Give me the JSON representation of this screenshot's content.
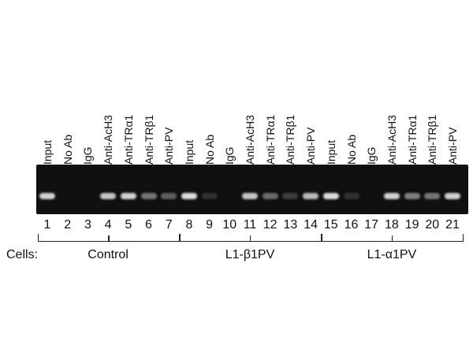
{
  "lane_labels": [
    "Input",
    "No Ab",
    "IgG",
    "Anti-AcH3",
    "Anti-TRα1",
    "Anti-TRβ1",
    "Anti-PV",
    "Input",
    "No Ab",
    "IgG",
    "Anti-AcH3",
    "Anti-TRα1",
    "Anti-TRβ1",
    "Anti-PV",
    "Input",
    "No Ab",
    "IgG",
    "Anti-AcH3",
    "Anti-TRα1",
    "Anti-TRβ1",
    "Anti-PV"
  ],
  "lane_numbers": [
    "1",
    "2",
    "3",
    "4",
    "5",
    "6",
    "7",
    "8",
    "9",
    "10",
    "11",
    "12",
    "13",
    "14",
    "15",
    "16",
    "17",
    "18",
    "19",
    "20",
    "21"
  ],
  "band_intensity": [
    0.85,
    0.0,
    0.0,
    0.8,
    0.85,
    0.45,
    0.35,
    0.9,
    0.15,
    0.0,
    0.8,
    0.4,
    0.2,
    0.75,
    0.9,
    0.15,
    0.0,
    0.85,
    0.5,
    0.45,
    0.85
  ],
  "cells_label": "Cells:",
  "groups": [
    {
      "name": "Control",
      "lanes": [
        1,
        7
      ]
    },
    {
      "name": "L1-β1PV",
      "lanes": [
        8,
        14
      ]
    },
    {
      "name": "L1-α1PV",
      "lanes": [
        15,
        21
      ]
    }
  ],
  "colors": {
    "gel_background": "#0f0f0f",
    "band": "#f2f2f2",
    "text": "#111111"
  }
}
